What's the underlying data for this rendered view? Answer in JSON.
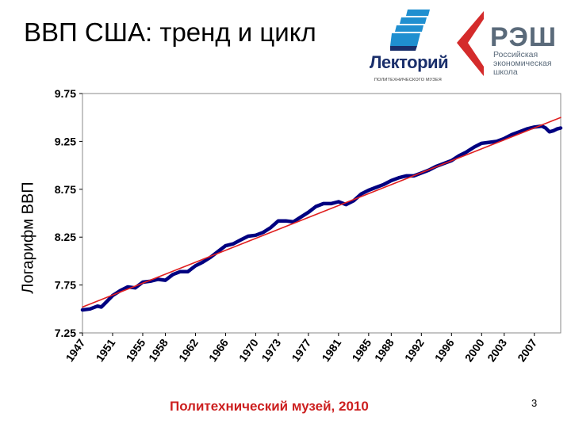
{
  "slide": {
    "title": "ВВП США: тренд и цикл",
    "footer": "Политехнический музей, 2010",
    "page_number": "3"
  },
  "logos": {
    "lektoriy_name": "Лекторий",
    "lektoriy_sub": "ПОЛИТЕХНИЧЕСКОГО МУЗЕЯ",
    "nes_abbr": "РЭШ",
    "nes_lines": [
      "Российская",
      "экономическая",
      "школа"
    ]
  },
  "colors": {
    "data_line": "#000080",
    "trend_line": "#e02020",
    "footer_text": "#cc1f1f",
    "nes_red": "#d42b2b",
    "lektoriy_blue": "#1f8fd0"
  },
  "chart_data": {
    "type": "line",
    "title": "",
    "xlabel": "",
    "ylabel": "Логарифм ВВП",
    "ylim": [
      7.25,
      9.75
    ],
    "xlim": [
      1947,
      2010.5
    ],
    "ytick_labels": [
      "7.25",
      "7.75",
      "8.25",
      "8.75",
      "9.25",
      "9.75"
    ],
    "xtick_labels": [
      "1947",
      "1951",
      "1955",
      "1958",
      "1962",
      "1966",
      "1970",
      "1973",
      "1977",
      "1981",
      "1985",
      "1988",
      "1992",
      "1996",
      "2000",
      "2003",
      "2007"
    ],
    "grid": false,
    "series": [
      {
        "name": "",
        "color": "#000080",
        "x": [
          1947,
          1948,
          1949,
          1949.5,
          1950,
          1951,
          1952,
          1953,
          1954,
          1955,
          1956,
          1957,
          1958,
          1959,
          1960,
          1961,
          1962,
          1963,
          1964,
          1965,
          1966,
          1967,
          1968,
          1969,
          1970,
          1971,
          1972,
          1973,
          1974,
          1975,
          1976,
          1977,
          1978,
          1979,
          1980,
          1981,
          1982,
          1983,
          1984,
          1985,
          1986,
          1987,
          1988,
          1989,
          1990,
          1991,
          1992,
          1993,
          1994,
          1995,
          1996,
          1997,
          1998,
          1999,
          2000,
          2001,
          2002,
          2003,
          2004,
          2005,
          2006,
          2007,
          2008,
          2008.5,
          2009,
          2009.5,
          2010,
          2010.5
        ],
        "y": [
          7.49,
          7.5,
          7.53,
          7.52,
          7.56,
          7.64,
          7.69,
          7.73,
          7.72,
          7.78,
          7.79,
          7.81,
          7.8,
          7.86,
          7.89,
          7.89,
          7.95,
          7.99,
          8.04,
          8.1,
          8.16,
          8.18,
          8.22,
          8.26,
          8.27,
          8.3,
          8.35,
          8.42,
          8.42,
          8.41,
          8.46,
          8.51,
          8.57,
          8.6,
          8.6,
          8.62,
          8.59,
          8.63,
          8.7,
          8.74,
          8.77,
          8.8,
          8.84,
          8.87,
          8.89,
          8.89,
          8.92,
          8.95,
          8.99,
          9.02,
          9.05,
          9.1,
          9.14,
          9.19,
          9.23,
          9.24,
          9.25,
          9.28,
          9.32,
          9.35,
          9.38,
          9.4,
          9.41,
          9.39,
          9.35,
          9.36,
          9.38,
          9.39
        ]
      },
      {
        "name": "",
        "color": "#e02020",
        "x": [
          1947,
          2010.5
        ],
        "y": [
          7.52,
          9.5
        ]
      }
    ]
  }
}
